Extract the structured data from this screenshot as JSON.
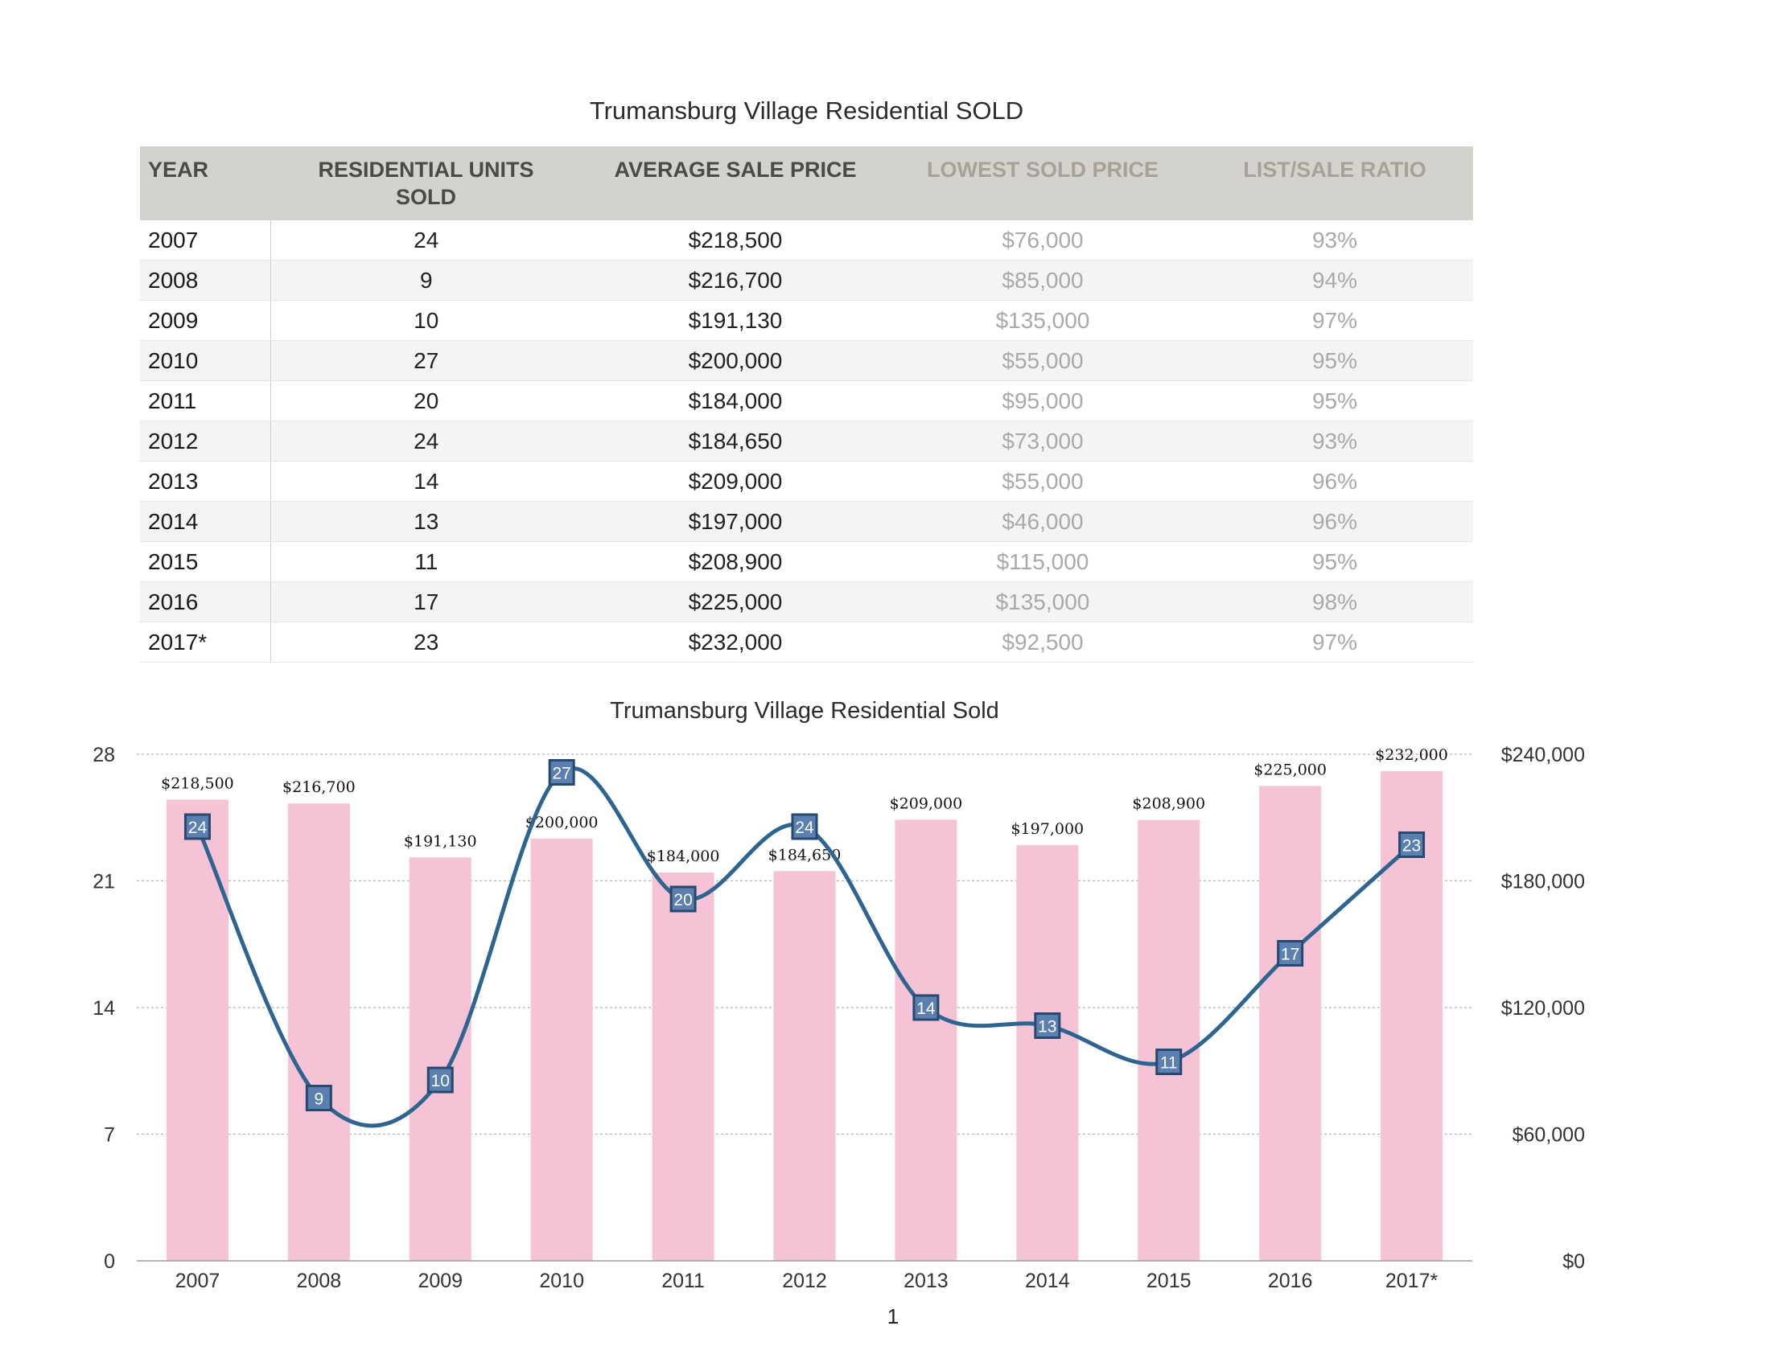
{
  "table": {
    "title": "Trumansburg Village Residential SOLD",
    "headers": [
      {
        "line1": "YEAR",
        "line2": ""
      },
      {
        "line1": "RESIDENTIAL UNITS",
        "line2": "SOLD"
      },
      {
        "line1": "AVERAGE SALE PRICE",
        "line2": ""
      },
      {
        "line1": "LOWEST SOLD PRICE",
        "line2": ""
      },
      {
        "line1": "LIST/SALE RATIO",
        "line2": ""
      }
    ],
    "rows": [
      [
        "2007",
        "24",
        "$218,500",
        "$76,000",
        "93%"
      ],
      [
        "2008",
        "9",
        "$216,700",
        "$85,000",
        "94%"
      ],
      [
        "2009",
        "10",
        "$191,130",
        "$135,000",
        "97%"
      ],
      [
        "2010",
        "27",
        "$200,000",
        "$55,000",
        "95%"
      ],
      [
        "2011",
        "20",
        "$184,000",
        "$95,000",
        "95%"
      ],
      [
        "2012",
        "24",
        "$184,650",
        "$73,000",
        "93%"
      ],
      [
        "2013",
        "14",
        "$209,000",
        "$55,000",
        "96%"
      ],
      [
        "2014",
        "13",
        "$197,000",
        "$46,000",
        "96%"
      ],
      [
        "2015",
        "11",
        "$208,900",
        "$115,000",
        "95%"
      ],
      [
        "2016",
        "17",
        "$225,000",
        "$135,000",
        "98%"
      ],
      [
        "2017*",
        "23",
        "$232,000",
        "$92,500",
        "97%"
      ]
    ]
  },
  "chart_data": {
    "type": "bar",
    "title": "Trumansburg Village Residential Sold",
    "categories": [
      "2007",
      "2008",
      "2009",
      "2010",
      "2011",
      "2012",
      "2013",
      "2014",
      "2015",
      "2016",
      "2017*"
    ],
    "series": [
      {
        "type": "bar",
        "axis": "right",
        "color": "#f6c2d5",
        "values": [
          218500,
          216700,
          191130,
          200000,
          184000,
          184650,
          209000,
          197000,
          208900,
          225000,
          232000
        ],
        "labels": [
          "$218,500",
          "$216,700",
          "$191,130",
          "$200,000",
          "$184,000",
          "$184,650",
          "$209,000",
          "$197,000",
          "$208,900",
          "$225,000",
          "$232,000"
        ]
      },
      {
        "type": "line",
        "smooth": true,
        "axis": "left",
        "color": "#2e6590",
        "values": [
          24,
          9,
          10,
          27,
          20,
          24,
          14,
          13,
          11,
          17,
          23
        ]
      }
    ],
    "y_left": {
      "min": 0,
      "max": 28,
      "ticks": [
        0,
        7,
        14,
        21,
        28
      ],
      "tick_labels": [
        "0",
        "7",
        "14",
        "21",
        "28"
      ]
    },
    "y_right": {
      "min": 0,
      "max": 240000,
      "ticks": [
        0,
        60000,
        120000,
        180000,
        240000
      ],
      "tick_labels": [
        "$0",
        "$60,000",
        "$120,000",
        "$180,000",
        "$240,000"
      ]
    },
    "grid": true,
    "legend": "none"
  },
  "page_number": "1"
}
